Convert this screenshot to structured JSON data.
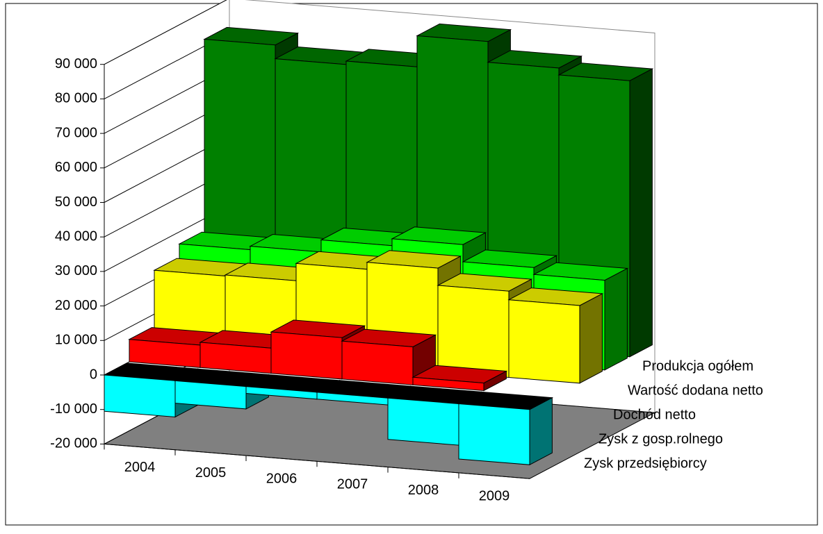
{
  "chart_data": {
    "type": "bar3d",
    "categories": [
      "2004",
      "2005",
      "2006",
      "2007",
      "2008",
      "2009"
    ],
    "series": [
      {
        "name": "Produkcja ogółem",
        "color": "#008000",
        "values": [
          82000,
          78000,
          79000,
          88000,
          82000,
          80000
        ]
      },
      {
        "name": "Wartość dodana netto",
        "color": "#00ff00",
        "values": [
          26500,
          27500,
          31000,
          33000,
          28000,
          26000
        ]
      },
      {
        "name": "Dochód netto",
        "color": "#ffff00",
        "values": [
          22700,
          23000,
          28000,
          30000,
          25000,
          22500
        ]
      },
      {
        "name": "Zysk z gosp.rolnego",
        "color": "#ff0000",
        "values": [
          6500,
          7300,
          12000,
          11000,
          2200,
          null
        ]
      },
      {
        "name": "Zysk przedsiębiorcy",
        "color": "#00ffff",
        "values": [
          -10500,
          -6500,
          -2000,
          -2000,
          -12000,
          -16000
        ]
      }
    ],
    "ylim": [
      -20000,
      90000
    ],
    "yticks": [
      {
        "value": -20000,
        "label": "-20 000"
      },
      {
        "value": -10000,
        "label": "-10 000"
      },
      0,
      {
        "value": 10000,
        "label": "10 000"
      },
      {
        "value": 20000,
        "label": "20 000"
      },
      {
        "value": 30000,
        "label": "30 000"
      },
      {
        "value": 40000,
        "label": "40 000"
      },
      {
        "value": 50000,
        "label": "50 000"
      },
      {
        "value": 60000,
        "label": "60 000"
      },
      {
        "value": 70000,
        "label": "70 000"
      },
      {
        "value": 80000,
        "label": "80 000"
      },
      {
        "value": 90000,
        "label": "90 000"
      }
    ],
    "grid": true
  }
}
